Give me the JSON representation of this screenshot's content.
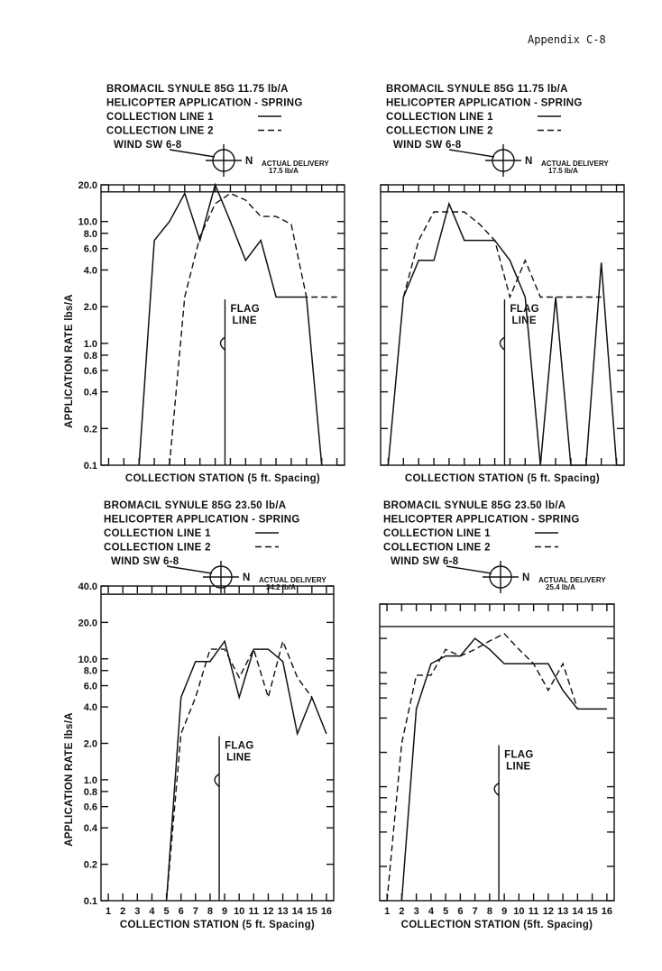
{
  "page_header": "Appendix C-8",
  "chart_data": [
    {
      "type": "line",
      "log_y": true,
      "title_lines": [
        "BROMACIL SYNULE 85G 11.75 lb/A",
        "HELICOPTER APPLICATION - SPRING"
      ],
      "legend": [
        {
          "label": "COLLECTION LINE 1",
          "style": "solid"
        },
        {
          "label": "COLLECTION LINE 2",
          "style": "dashed"
        }
      ],
      "wind_label": "WIND SW 6-8",
      "compass_label": "N",
      "delivery_label": [
        "ACTUAL DELIVERY",
        "17.5 lb/A"
      ],
      "delivery_value": 17.5,
      "flag_label": [
        "FLAG",
        "LINE"
      ],
      "flag_station": 9,
      "xlabel": "COLLECTION STATION (5 ft. Spacing)",
      "ylabel": "APPLICATION RATE lbs/A",
      "xlim": [
        0.5,
        16.5
      ],
      "ylim": [
        0.1,
        20.0
      ],
      "show_x_numbers": false,
      "ytick_labels": [
        "20.0",
        "10.0",
        "8.0",
        "6.0",
        "4.0",
        "2.0",
        "1.0",
        "0.8",
        "0.6",
        "0.4",
        "0.2",
        "0.1"
      ],
      "ytick_values": [
        20,
        10,
        8,
        6,
        4,
        2,
        1,
        0.8,
        0.6,
        0.4,
        0.2,
        0.1
      ],
      "series": [
        {
          "name": "COLLECTION LINE 1",
          "style": "solid",
          "x": [
            3,
            4,
            5,
            6,
            7,
            8,
            9,
            10,
            11,
            12,
            13,
            14,
            15
          ],
          "y": [
            0.1,
            7.0,
            10.0,
            17.0,
            7.0,
            20.0,
            10.0,
            4.8,
            7.0,
            2.4,
            2.4,
            2.4,
            0.1
          ]
        },
        {
          "name": "COLLECTION LINE 2",
          "style": "dashed",
          "x": [
            5,
            6,
            7,
            8,
            9,
            10,
            11,
            12,
            13,
            14,
            15,
            16
          ],
          "y": [
            0.1,
            2.4,
            7.5,
            14.0,
            17.0,
            15.0,
            11.0,
            11.0,
            9.5,
            2.4,
            2.4,
            2.4
          ]
        }
      ]
    },
    {
      "type": "line",
      "log_y": true,
      "title_lines": [
        "BROMACIL SYNULE 85G 11.75 lb/A",
        "HELICOPTER APPLICATION - SPRING"
      ],
      "legend": [
        {
          "label": "COLLECTION LINE 1",
          "style": "solid"
        },
        {
          "label": "COLLECTION LINE 2",
          "style": "dashed"
        }
      ],
      "wind_label": "WIND SW 6-8",
      "compass_label": "N",
      "delivery_label": [
        "ACTUAL DELIVERY",
        "17.5 lb/A"
      ],
      "delivery_value": 17.5,
      "flag_label": [
        "FLAG",
        "LINE"
      ],
      "flag_station": 9,
      "xlabel": "COLLECTION STATION (5 ft. Spacing)",
      "ylabel": "",
      "xlim": [
        0.5,
        16.5
      ],
      "ylim": [
        0.1,
        20.0
      ],
      "show_x_numbers": false,
      "ytick_labels": [],
      "ytick_values": [
        20,
        10,
        8,
        6,
        4,
        2,
        1,
        0.8,
        0.6,
        0.4,
        0.2,
        0.1
      ],
      "series": [
        {
          "name": "COLLECTION LINE 1",
          "style": "solid",
          "x": [
            1,
            2,
            3,
            4,
            5,
            6,
            7,
            8,
            9,
            10,
            11,
            12,
            13,
            14,
            15,
            16
          ],
          "y": [
            0.1,
            2.4,
            4.8,
            4.8,
            14.0,
            7.0,
            7.0,
            7.0,
            4.8,
            2.4,
            0.1,
            2.4,
            0.1,
            0.1,
            4.6,
            0.1
          ]
        },
        {
          "name": "COLLECTION LINE 2",
          "style": "dashed",
          "x": [
            2,
            3,
            4,
            5,
            6,
            7,
            8,
            9,
            10,
            11,
            12,
            13,
            14,
            15
          ],
          "y": [
            2.4,
            7.0,
            12.0,
            12.0,
            12.0,
            9.5,
            7.0,
            2.4,
            4.8,
            2.4,
            2.4,
            2.4,
            2.4,
            2.4
          ]
        }
      ]
    },
    {
      "type": "line",
      "log_y": true,
      "title_lines": [
        "BROMACIL SYNULE 85G 23.50 lb/A",
        "HELICOPTER APPLICATION - SPRING"
      ],
      "legend": [
        {
          "label": "COLLECTION LINE 1",
          "style": "solid"
        },
        {
          "label": "COLLECTION LINE 2",
          "style": "dashed"
        }
      ],
      "wind_label": "WIND SW 6-8",
      "compass_label": "N",
      "delivery_label": [
        "ACTUAL DELIVERY",
        "34.2 lb/A"
      ],
      "delivery_value": 34.2,
      "flag_label": [
        "FLAG",
        "LINE"
      ],
      "flag_station": 9,
      "xlabel": "COLLECTION STATION (5 ft. Spacing)",
      "ylabel": "APPLICATION RATE lbs/A",
      "xlim": [
        0.5,
        16.5
      ],
      "ylim": [
        0.1,
        40.0
      ],
      "show_x_numbers": true,
      "xtick_labels": [
        "1",
        "2",
        "3",
        "4",
        "5",
        "6",
        "7",
        "8",
        "9",
        "10",
        "11",
        "12",
        "13",
        "14",
        "15",
        "16"
      ],
      "ytick_labels": [
        "40.0",
        "20.0",
        "10.0",
        "8.0",
        "6.0",
        "4.0",
        "2.0",
        "1.0",
        "0.8",
        "0.6",
        "0.4",
        "0.2",
        "0.1"
      ],
      "ytick_values": [
        40,
        20,
        10,
        8,
        6,
        4,
        2,
        1,
        0.8,
        0.6,
        0.4,
        0.2,
        0.1
      ],
      "series": [
        {
          "name": "COLLECTION LINE 1",
          "style": "solid",
          "x": [
            5,
            6,
            7,
            8,
            9,
            10,
            11,
            12,
            13,
            14,
            15,
            16
          ],
          "y": [
            0.1,
            4.8,
            9.5,
            9.5,
            14.0,
            4.8,
            12.0,
            12.0,
            9.5,
            2.4,
            4.8,
            2.4
          ]
        },
        {
          "name": "COLLECTION LINE 2",
          "style": "dashed",
          "x": [
            5,
            6,
            7,
            8,
            9,
            10,
            11,
            12,
            13,
            14,
            15
          ],
          "y": [
            0.1,
            2.4,
            4.8,
            12.0,
            12.0,
            7.0,
            12.0,
            4.8,
            14.0,
            7.0,
            4.8
          ]
        }
      ]
    },
    {
      "type": "line",
      "log_y": true,
      "title_lines": [
        "BROMACIL SYNULE 85G 23.50 lb/A",
        "HELICOPTER APPLICATION - SPRING"
      ],
      "legend": [
        {
          "label": "COLLECTION LINE 1",
          "style": "solid"
        },
        {
          "label": "COLLECTION LINE 2",
          "style": "dashed"
        }
      ],
      "wind_label": "WIND SW 6-8",
      "compass_label": "N",
      "delivery_label": [
        "ACTUAL DELIVERY",
        "25.4 lb/A"
      ],
      "delivery_value": 25.4,
      "flag_label": [
        "FLAG",
        "LINE"
      ],
      "flag_station": 9,
      "xlabel": "COLLECTION STATION (5ft. Spacing)",
      "ylabel": "",
      "xlim": [
        0.5,
        16.5
      ],
      "ylim": [
        0.1,
        40.0
      ],
      "show_x_numbers": true,
      "xtick_labels": [
        "1",
        "2",
        "3",
        "4",
        "5",
        "6",
        "7",
        "8",
        "9",
        "10",
        "11",
        "12",
        "13",
        "14",
        "15",
        "16"
      ],
      "ytick_labels": [],
      "ytick_values": [
        40,
        20,
        10,
        8,
        6,
        4,
        2,
        1,
        0.8,
        0.6,
        0.4,
        0.2,
        0.1
      ],
      "series": [
        {
          "name": "COLLECTION LINE 1",
          "style": "solid",
          "x": [
            2,
            3,
            4,
            5,
            6,
            7,
            8,
            9,
            10,
            11,
            12,
            13,
            14,
            15,
            16
          ],
          "y": [
            0.1,
            4.8,
            12.0,
            14.0,
            14.0,
            20.0,
            16.0,
            12.0,
            12.0,
            12.0,
            12.0,
            7.0,
            4.8,
            4.8,
            4.8
          ]
        },
        {
          "name": "COLLECTION LINE 2",
          "style": "dashed",
          "x": [
            1,
            2,
            3,
            4,
            5,
            6,
            7,
            8,
            9,
            10,
            11,
            12,
            13,
            14
          ],
          "y": [
            0.1,
            2.4,
            9.5,
            9.5,
            16.0,
            14.0,
            16.0,
            19.0,
            22.0,
            16.0,
            12.0,
            7.0,
            12.0,
            4.8
          ]
        }
      ]
    }
  ]
}
